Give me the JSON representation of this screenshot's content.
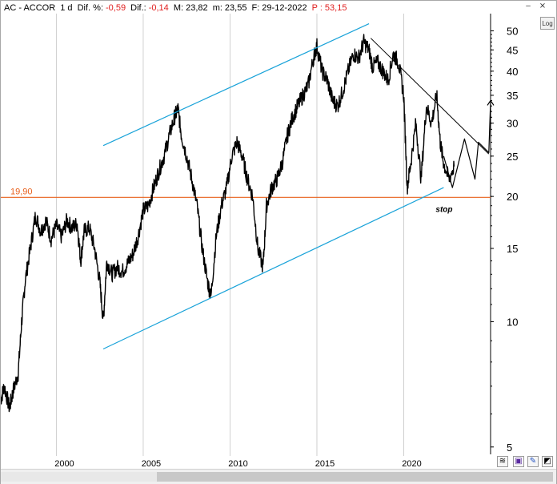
{
  "header": {
    "symbol": "AC - ACCOR",
    "interval": "1 d",
    "dif_pct_label": "Dif. %:",
    "dif_pct_value": "-0,59",
    "dif_label": "Dif.:",
    "dif_value": "-0,14",
    "max_label": "M:",
    "max_value": "23,82",
    "min_label": "m:",
    "min_value": "23,55",
    "date_label": "F:",
    "date_value": "29-12-2022",
    "price_label": "P :",
    "price_value": "53,15"
  },
  "controls": {
    "log_label": "Log",
    "minimize_icon": "minimize-icon",
    "close_icon": "close-icon"
  },
  "colors": {
    "price": "#000000",
    "channel": "#1aa3d9",
    "support": "#e8601c",
    "support_label": "#e8601c",
    "grid": "#d0d0d0",
    "negative": "#e02020"
  },
  "annotations": {
    "support_value": "19,90",
    "stop_label": "stop"
  },
  "chart_data": {
    "type": "line",
    "title": "",
    "xlabel": "",
    "ylabel": "",
    "y_scale": "log",
    "grid": "vertical-only",
    "x_ticks": [
      "2000",
      "2005",
      "2010",
      "2015",
      "2020"
    ],
    "y_ticks": [
      "50",
      "45",
      "40",
      "35",
      "30",
      "25",
      "20",
      "15",
      "10",
      "5"
    ],
    "xlim": [
      1996.8,
      2025.0
    ],
    "ylim": [
      4.8,
      55
    ],
    "series": [
      {
        "x": [
          1996.8,
          1997.0,
          1997.3,
          1997.5,
          1997.8,
          1998.0,
          1998.2,
          1998.5,
          1998.8,
          1999.1,
          1999.4,
          1999.7,
          2000.0,
          2000.3,
          2000.6,
          2000.9,
          2001.2,
          2001.4,
          2001.6,
          2001.9,
          2002.2,
          2002.5,
          2002.7,
          2002.9,
          2003.2,
          2003.5,
          2003.8,
          2004.1,
          2004.4,
          2004.7,
          2005.0,
          2005.3,
          2005.6,
          2005.9,
          2006.2,
          2006.5,
          2006.8,
          2007.0,
          2007.2,
          2007.5,
          2007.8,
          2008.1,
          2008.4,
          2008.7,
          2008.9,
          2009.2,
          2009.5,
          2009.8,
          2010.1,
          2010.4,
          2010.7,
          2011.0,
          2011.3,
          2011.6,
          2011.9,
          2012.1,
          2012.4,
          2012.7,
          2013.0,
          2013.3,
          2013.6,
          2013.9,
          2014.2,
          2014.5,
          2014.8,
          2015.0,
          2015.3,
          2015.6,
          2015.9,
          2016.2,
          2016.5,
          2016.8,
          2017.1,
          2017.4,
          2017.7,
          2018.0,
          2018.2,
          2018.5,
          2018.8,
          2019.1,
          2019.4,
          2019.7,
          2020.0,
          2020.2,
          2020.4,
          2020.7,
          2021.0,
          2021.3,
          2021.6,
          2021.9,
          2022.1,
          2022.3,
          2022.6,
          2022.9
        ],
        "values": [
          6.5,
          7.0,
          6.2,
          6.8,
          7.5,
          10.0,
          12.5,
          15.0,
          18.0,
          16.5,
          17.5,
          15.8,
          17.0,
          16.0,
          17.5,
          16.8,
          17.2,
          14.0,
          16.5,
          16.8,
          15.0,
          12.5,
          10.0,
          14.0,
          13.0,
          13.5,
          13.2,
          13.8,
          14.5,
          16.0,
          18.5,
          19.0,
          21.0,
          23.0,
          25.0,
          28.0,
          31.0,
          32.5,
          28.0,
          25.0,
          22.0,
          19.0,
          15.0,
          12.5,
          11.5,
          16.0,
          19.0,
          21.0,
          25.0,
          27.0,
          25.0,
          22.0,
          20.0,
          15.0,
          13.5,
          19.0,
          21.0,
          22.0,
          24.0,
          28.0,
          31.0,
          33.0,
          35.0,
          37.0,
          43.0,
          46.0,
          40.0,
          38.0,
          34.0,
          33.0,
          36.0,
          40.0,
          44.0,
          43.0,
          47.0,
          45.0,
          41.0,
          42.0,
          40.0,
          38.0,
          44.0,
          42.0,
          35.0,
          21.0,
          24.0,
          30.0,
          22.0,
          33.0,
          30.0,
          35.0,
          27.0,
          24.0,
          22.0,
          23.6
        ]
      },
      {
        "name": "channel-upper",
        "x": [
          2002.7,
          2018.0
        ],
        "values": [
          26.5,
          52.0
        ]
      },
      {
        "name": "channel-lower",
        "x": [
          2002.7,
          2022.3
        ],
        "values": [
          8.6,
          21.0
        ]
      },
      {
        "name": "resistance",
        "x": [
          2018.1,
          2024.9
        ],
        "values": [
          48.0,
          25.3
        ]
      },
      {
        "name": "projection",
        "x": [
          2022.3,
          2022.8,
          2023.5,
          2024.1,
          2024.3,
          2024.9,
          2025.0
        ],
        "values": [
          25.0,
          21.0,
          27.5,
          22.0,
          27.0,
          25.5,
          34.0
        ]
      },
      {
        "name": "support",
        "x": [
          1996.8,
          2025.0
        ],
        "values": [
          19.9,
          19.9
        ]
      }
    ]
  }
}
